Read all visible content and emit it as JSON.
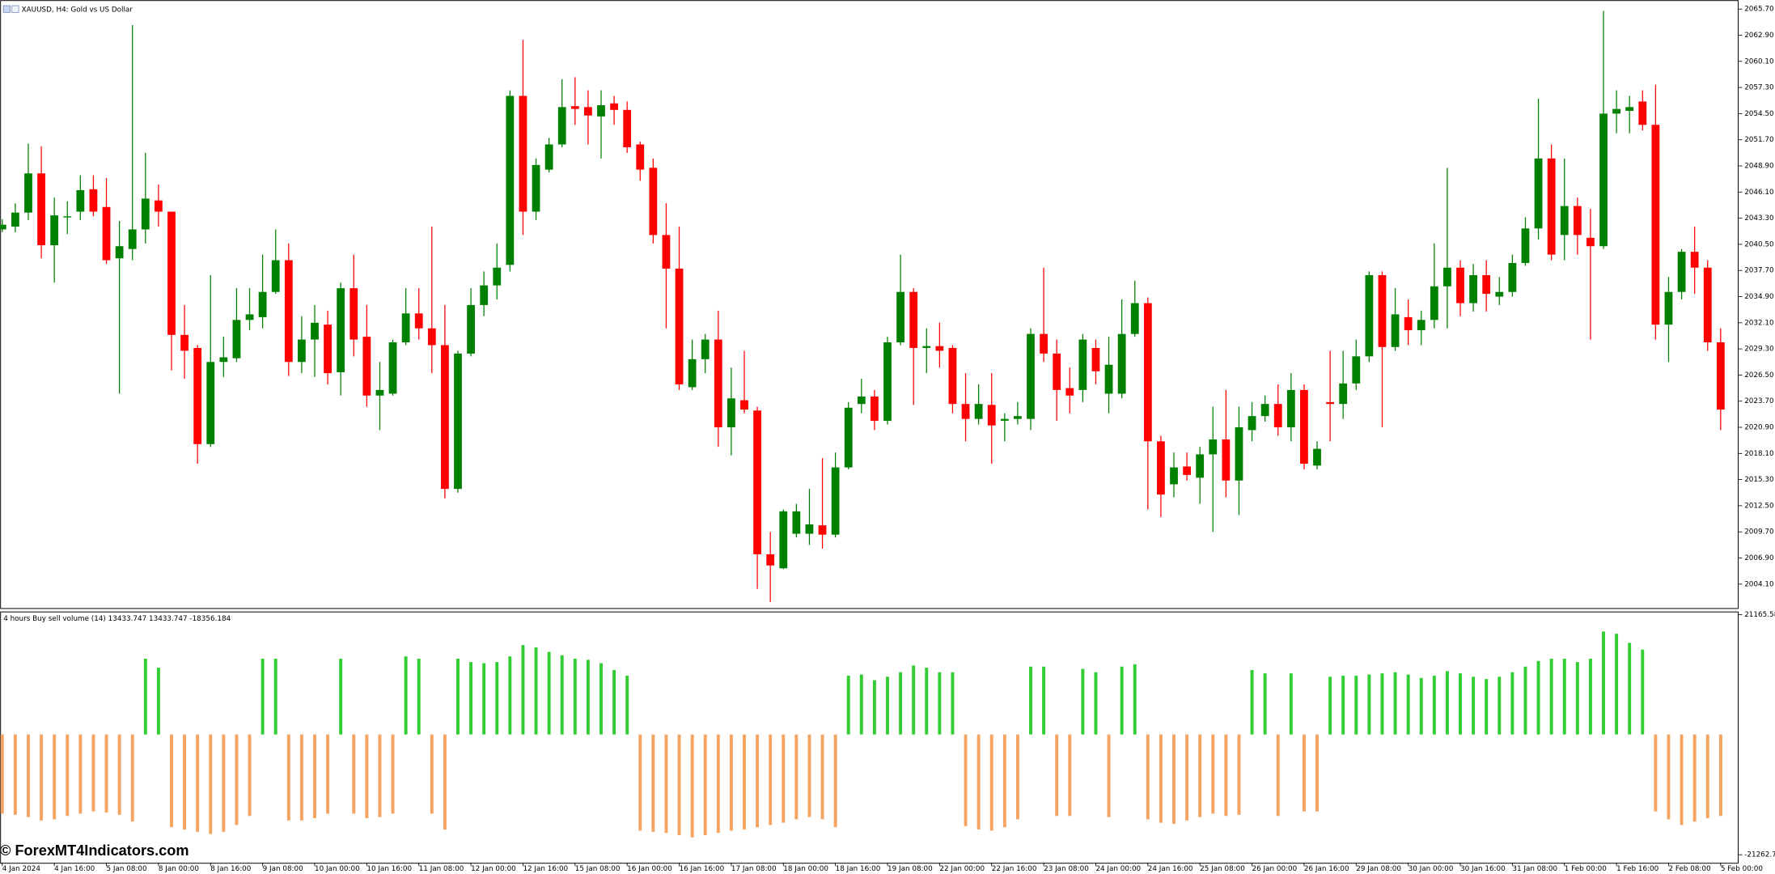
{
  "watermark": "© ForexMT4Indicators.com",
  "chart_data": [
    {
      "type": "candlestick",
      "title": "XAUUSD, H4:  Gold vs US Dollar",
      "categories": [
        "4 Jan 2024",
        null,
        null,
        null,
        "4 Jan 16:00",
        null,
        null,
        null,
        "5 Jan 08:00",
        null,
        null,
        null,
        "8 Jan 00:00",
        null,
        null,
        null,
        "8 Jan 16:00",
        null,
        null,
        null,
        "9 Jan 08:00",
        null,
        null,
        null,
        "10 Jan 00:00",
        null,
        null,
        null,
        "10 Jan 16:00",
        null,
        null,
        null,
        "11 Jan 08:00",
        null,
        null,
        null,
        "12 Jan 00:00",
        null,
        null,
        null,
        "12 Jan 16:00",
        null,
        null,
        null,
        "15 Jan 08:00",
        null,
        null,
        null,
        "16 Jan 00:00",
        null,
        null,
        null,
        "16 Jan 16:00",
        null,
        null,
        null,
        "17 Jan 08:00",
        null,
        null,
        null,
        "18 Jan 00:00",
        null,
        null,
        null,
        "18 Jan 16:00",
        null,
        null,
        null,
        "19 Jan 08:00",
        null,
        null,
        null,
        "22 Jan 00:00",
        null,
        null,
        null,
        "22 Jan 16:00",
        null,
        null,
        null,
        "23 Jan 08:00",
        null,
        null,
        null,
        "24 Jan 00:00",
        null,
        null,
        null,
        "24 Jan 16:00",
        null,
        null,
        null,
        "25 Jan 08:00",
        null,
        null,
        null,
        "26 Jan 00:00",
        null,
        null,
        null,
        "26 Jan 16:00",
        null,
        null,
        null,
        "29 Jan 08:00",
        null,
        null,
        null,
        "30 Jan 00:00",
        null,
        null,
        null,
        "30 Jan 16:00",
        null,
        null,
        null,
        "31 Jan 08:00",
        null,
        null,
        null,
        "1 Feb 00:00",
        null,
        null,
        null,
        "1 Feb 16:00",
        null,
        null,
        null,
        "2 Feb 08:00",
        null,
        null,
        null,
        "5 Feb 00:00"
      ],
      "open": [
        2042.1,
        2042.4,
        2043.9,
        2048.1,
        2040.4,
        2043.4,
        2044.0,
        2046.4,
        2044.5,
        2039.0,
        2040.0,
        2042.1,
        2045.2,
        2044.0,
        2030.8,
        2029.4,
        2019.1,
        2027.9,
        2028.3,
        2032.4,
        2032.7,
        2035.4,
        2038.8,
        2027.9,
        2030.3,
        2031.9,
        2026.8,
        2035.8,
        2030.6,
        2024.3,
        2024.5,
        2030.0,
        2033.1,
        2031.5,
        2029.7,
        2014.3,
        2028.8,
        2034.0,
        2036.1,
        2038.3,
        2056.4,
        2044.0,
        2048.5,
        2051.2,
        2055.3,
        2055.2,
        2054.2,
        2055.6,
        2054.9,
        2051.2,
        2048.7,
        2041.5,
        2037.9,
        2025.2,
        2028.2,
        2030.3,
        2020.9,
        2023.8,
        2022.7,
        2007.3,
        2005.8,
        2009.5,
        2009.5,
        2010.4,
        2009.4,
        2016.6,
        2023.4,
        2024.2,
        2021.6,
        2030.0,
        2035.4,
        2029.4,
        2029.6,
        2029.4,
        2023.4,
        2021.8,
        2023.3,
        2021.6,
        2021.8,
        2021.8,
        2030.9,
        2028.8,
        2025.1,
        2024.9,
        2029.4,
        2024.5,
        2024.5,
        2030.9,
        2034.2,
        2019.4,
        2014.8,
        2016.7,
        2015.5,
        2018.0,
        2019.6,
        2015.2,
        2020.6,
        2022.1,
        2023.4,
        2020.9,
        2024.9,
        2016.8,
        2023.6,
        2023.4,
        2025.6,
        2028.5,
        2037.2,
        2029.5,
        2032.7,
        2031.3,
        2032.4,
        2036.0,
        2038.0,
        2034.2,
        2037.2,
        2034.9,
        2035.4,
        2038.5,
        2042.2,
        2049.7,
        2041.5,
        2044.6,
        2041.2,
        2040.3,
        2054.5,
        2054.8,
        2055.8,
        2053.3,
        2031.9,
        2035.4,
        2039.7,
        2038.0,
        2030.0
      ],
      "high": [
        2043.2,
        2044.9,
        2051.3,
        2051.0,
        2045.5,
        2045.1,
        2047.9,
        2047.9,
        2047.6,
        2043.0,
        2064.0,
        2050.3,
        2046.9,
        2044.0,
        2034.0,
        2029.7,
        2037.2,
        2030.6,
        2035.8,
        2035.8,
        2039.4,
        2042.1,
        2040.6,
        2032.8,
        2034.0,
        2033.4,
        2036.4,
        2039.4,
        2034.0,
        2027.9,
        2030.3,
        2035.8,
        2035.8,
        2042.4,
        2034.0,
        2029.1,
        2035.8,
        2037.6,
        2040.6,
        2057.0,
        2062.4,
        2049.7,
        2051.9,
        2058.2,
        2058.4,
        2057.0,
        2057.0,
        2056.4,
        2055.8,
        2051.5,
        2049.7,
        2044.9,
        2042.4,
        2030.3,
        2030.9,
        2033.4,
        2027.3,
        2029.1,
        2023.1,
        2009.7,
        2012.1,
        2012.7,
        2014.3,
        2017.6,
        2018.2,
        2023.6,
        2026.1,
        2024.9,
        2030.6,
        2039.4,
        2035.8,
        2031.5,
        2032.1,
        2029.7,
        2026.7,
        2025.5,
        2026.7,
        2022.4,
        2023.6,
        2031.5,
        2038.0,
        2030.3,
        2027.3,
        2030.9,
        2030.3,
        2030.6,
        2034.6,
        2036.6,
        2034.8,
        2020.0,
        2018.2,
        2018.2,
        2018.8,
        2023.1,
        2024.9,
        2023.1,
        2023.6,
        2024.3,
        2025.5,
        2026.7,
        2025.5,
        2019.4,
        2029.1,
        2029.1,
        2030.3,
        2037.6,
        2037.6,
        2035.8,
        2034.6,
        2033.4,
        2040.6,
        2048.7,
        2038.8,
        2038.4,
        2038.8,
        2037.0,
        2039.4,
        2043.4,
        2056.1,
        2051.2,
        2049.7,
        2045.5,
        2044.3,
        2065.5,
        2057.0,
        2056.4,
        2057.0,
        2057.6,
        2037.0,
        2040.0,
        2042.4,
        2038.8,
        2031.5
      ],
      "low": [
        2041.8,
        2041.8,
        2043.1,
        2039.0,
        2036.4,
        2041.6,
        2043.1,
        2043.5,
        2038.4,
        2024.5,
        2038.8,
        2040.6,
        2042.4,
        2027.0,
        2026.1,
        2017.0,
        2018.8,
        2026.3,
        2027.9,
        2031.3,
        2031.5,
        2035.2,
        2026.4,
        2026.7,
        2026.3,
        2025.5,
        2024.3,
        2028.5,
        2023.1,
        2020.6,
        2024.3,
        2029.7,
        2030.3,
        2026.7,
        2013.3,
        2013.9,
        2028.5,
        2032.8,
        2034.6,
        2037.6,
        2041.5,
        2043.1,
        2048.2,
        2050.9,
        2053.3,
        2051.2,
        2049.7,
        2053.3,
        2050.3,
        2047.3,
        2040.6,
        2031.5,
        2024.9,
        2024.9,
        2026.7,
        2018.8,
        2017.9,
        2022.4,
        2003.6,
        2002.2,
        2005.7,
        2009.1,
        2008.3,
        2007.9,
        2009.1,
        2016.4,
        2022.4,
        2020.6,
        2021.2,
        2029.7,
        2023.3,
        2026.7,
        2027.3,
        2022.4,
        2019.4,
        2021.2,
        2017.0,
        2019.4,
        2021.2,
        2020.6,
        2027.9,
        2021.6,
        2022.4,
        2023.6,
        2025.5,
        2022.4,
        2024.0,
        2030.6,
        2012.1,
        2011.3,
        2013.4,
        2015.2,
        2012.7,
        2009.7,
        2013.4,
        2011.5,
        2019.4,
        2021.5,
        2020.0,
        2019.4,
        2016.4,
        2016.4,
        2019.4,
        2021.8,
        2024.9,
        2027.9,
        2020.9,
        2029.1,
        2029.7,
        2029.7,
        2031.5,
        2031.5,
        2032.8,
        2033.3,
        2033.3,
        2034.0,
        2034.9,
        2038.2,
        2041.0,
        2038.8,
        2038.8,
        2039.4,
        2030.3,
        2040.0,
        2052.4,
        2052.4,
        2052.7,
        2030.3,
        2027.9,
        2034.6,
        2035.2,
        2029.1,
        2020.6
      ],
      "close": [
        2042.6,
        2043.9,
        2048.1,
        2040.4,
        2043.6,
        2043.5,
        2046.3,
        2044.0,
        2038.8,
        2040.3,
        2042.1,
        2045.4,
        2044.0,
        2030.8,
        2029.1,
        2019.1,
        2027.9,
        2028.4,
        2032.4,
        2033.0,
        2035.4,
        2038.8,
        2027.9,
        2030.3,
        2032.1,
        2026.7,
        2035.8,
        2030.3,
        2024.3,
        2024.9,
        2030.0,
        2033.1,
        2031.5,
        2029.7,
        2014.3,
        2028.8,
        2034.0,
        2036.1,
        2038.0,
        2056.4,
        2044.0,
        2049.0,
        2051.2,
        2055.2,
        2055.0,
        2054.3,
        2055.4,
        2054.9,
        2050.9,
        2048.5,
        2041.5,
        2037.9,
        2025.5,
        2028.2,
        2030.3,
        2020.9,
        2024.0,
        2022.8,
        2007.3,
        2006.1,
        2011.9,
        2011.9,
        2010.5,
        2009.4,
        2016.6,
        2023.0,
        2024.2,
        2021.6,
        2030.0,
        2035.4,
        2029.4,
        2029.6,
        2029.1,
        2023.4,
        2021.8,
        2023.4,
        2021.1,
        2021.8,
        2022.1,
        2030.9,
        2028.8,
        2024.9,
        2024.3,
        2030.3,
        2026.9,
        2027.6,
        2030.9,
        2034.2,
        2019.4,
        2013.7,
        2016.6,
        2015.8,
        2018.0,
        2019.6,
        2015.2,
        2020.9,
        2022.1,
        2023.4,
        2020.9,
        2024.9,
        2017.0,
        2018.6,
        2023.4,
        2025.6,
        2028.5,
        2037.2,
        2029.5,
        2033.0,
        2031.3,
        2032.4,
        2036.0,
        2038.0,
        2034.2,
        2037.2,
        2035.2,
        2035.4,
        2038.5,
        2042.2,
        2049.7,
        2039.4,
        2044.6,
        2041.5,
        2040.3,
        2054.5,
        2055.0,
        2055.2,
        2053.3,
        2031.9,
        2035.4,
        2039.7,
        2038.0,
        2030.0,
        2022.8
      ],
      "up_color": "#008000",
      "down_color": "#ff0000",
      "ylim": [
        2001.55,
        2066.55
      ],
      "yticks": [
        {
          "value": 2065.7,
          "label": "2065.70"
        },
        {
          "value": 2062.9,
          "label": "2062.90"
        },
        {
          "value": 2060.1,
          "label": "2060.10"
        },
        {
          "value": 2057.3,
          "label": "2057.30"
        },
        {
          "value": 2054.5,
          "label": "2054.50"
        },
        {
          "value": 2051.7,
          "label": "2051.70"
        },
        {
          "value": 2048.9,
          "label": "2048.90"
        },
        {
          "value": 2046.1,
          "label": "2046.10"
        },
        {
          "value": 2043.3,
          "label": "2043.30"
        },
        {
          "value": 2040.5,
          "label": "2040.50"
        },
        {
          "value": 2037.7,
          "label": "2037.70"
        },
        {
          "value": 2034.9,
          "label": "2034.90"
        },
        {
          "value": 2032.1,
          "label": "2032.10"
        },
        {
          "value": 2029.3,
          "label": "2029.30"
        },
        {
          "value": 2026.5,
          "label": "2026.50"
        },
        {
          "value": 2023.7,
          "label": "2023.70"
        },
        {
          "value": 2020.9,
          "label": "2020.90"
        },
        {
          "value": 2018.1,
          "label": "2018.10"
        },
        {
          "value": 2015.3,
          "label": "2015.30"
        },
        {
          "value": 2012.5,
          "label": "2012.50"
        },
        {
          "value": 2009.7,
          "label": "2009.70"
        },
        {
          "value": 2006.9,
          "label": "2006.90"
        },
        {
          "value": 2004.1,
          "label": "2004.10"
        }
      ]
    },
    {
      "type": "bar",
      "title": "4 hours Buy sell volume (14) 13433.747 13433.747 -18356.184",
      "values": [
        -14000,
        -14200,
        -14600,
        -15200,
        -15000,
        -14400,
        -14000,
        -13600,
        -13800,
        -14200,
        -15400,
        13400,
        11800,
        -16400,
        -16800,
        -17200,
        -17600,
        -17200,
        -16000,
        -14400,
        13400,
        13400,
        -15200,
        -15200,
        -14800,
        -14000,
        13400,
        -14000,
        -14800,
        -14600,
        -14000,
        13800,
        13400,
        -14000,
        -16800,
        13400,
        12800,
        12600,
        12800,
        13800,
        15800,
        15400,
        14600,
        14000,
        13400,
        13200,
        12600,
        11400,
        10400,
        -17000,
        -17200,
        -17400,
        -17800,
        -18200,
        -17800,
        -17400,
        -17000,
        -16800,
        -16400,
        -16000,
        -15600,
        -15000,
        -14600,
        -15000,
        -16400,
        10400,
        10600,
        9600,
        10200,
        11000,
        12200,
        11800,
        11000,
        11000,
        -16200,
        -16800,
        -17000,
        -16400,
        -15000,
        12000,
        12000,
        -14400,
        -14400,
        11600,
        11000,
        -14600,
        12000,
        12400,
        -15000,
        -15600,
        -15800,
        -15200,
        -14600,
        -14000,
        -14400,
        -14200,
        11400,
        10800,
        -14400,
        10800,
        -13600,
        -13600,
        10200,
        10400,
        10400,
        10600,
        10800,
        11000,
        10600,
        10000,
        10400,
        11200,
        10800,
        10200,
        9800,
        10200,
        11000,
        12000,
        13000,
        13400,
        13400,
        12800,
        13400,
        18200,
        17800,
        16200,
        15000,
        -13600,
        -15000,
        -16000,
        -15400,
        -14800,
        -14400
      ],
      "up_color": "#32cd32",
      "down_color": "#f4a460",
      "ylim": [
        -22663,
        21766
      ],
      "yticks": [
        21165.58,
        -21262.7
      ]
    }
  ]
}
